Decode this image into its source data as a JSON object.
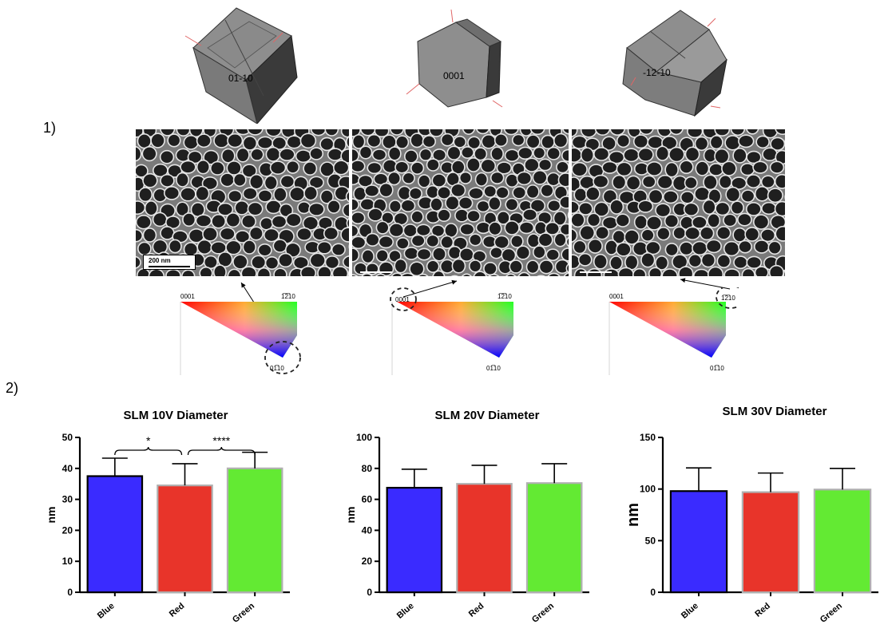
{
  "panel_labels": {
    "one": "1)",
    "two": "2)"
  },
  "crystals": [
    {
      "label": "01-10"
    },
    {
      "label": "0001"
    },
    {
      "label": "-12-10"
    }
  ],
  "micrographs": {
    "scale_bar_label": "200 nm"
  },
  "ipf": {
    "corner_0001": "0001",
    "corner_1210": "1̅2̅10",
    "corner_0110": "01̅10"
  },
  "colors": {
    "blue": "#3a2bff",
    "red": "#e8342a",
    "green": "#63ea33"
  },
  "chart_data": [
    {
      "type": "bar",
      "title": "SLM 10V Diameter",
      "ylabel": "nm",
      "categories": [
        "Blue",
        "Red",
        "Green"
      ],
      "values": [
        37.5,
        34.5,
        40
      ],
      "errors": [
        5.8,
        7,
        5.2
      ],
      "ylim": [
        0,
        50
      ],
      "yticks": [
        "0",
        "10",
        "20",
        "30",
        "40",
        "50"
      ],
      "significance": [
        "*",
        "****"
      ]
    },
    {
      "type": "bar",
      "title": "SLM 20V Diameter",
      "ylabel": "nm",
      "categories": [
        "Blue",
        "Red",
        "Green"
      ],
      "values": [
        67.5,
        70,
        70.5
      ],
      "errors": [
        12,
        12,
        12.5
      ],
      "ylim": [
        0,
        100
      ],
      "yticks": [
        "0",
        "20",
        "40",
        "60",
        "80",
        "100"
      ]
    },
    {
      "type": "bar",
      "title": "SLM 30V Diameter",
      "ylabel": "nm",
      "categories": [
        "Blue",
        "Red",
        "Green"
      ],
      "values": [
        98,
        97,
        99.5
      ],
      "errors": [
        22.5,
        18.5,
        20.5
      ],
      "ylim": [
        0,
        150
      ],
      "yticks": [
        "0",
        "50",
        "100",
        "150"
      ]
    }
  ]
}
